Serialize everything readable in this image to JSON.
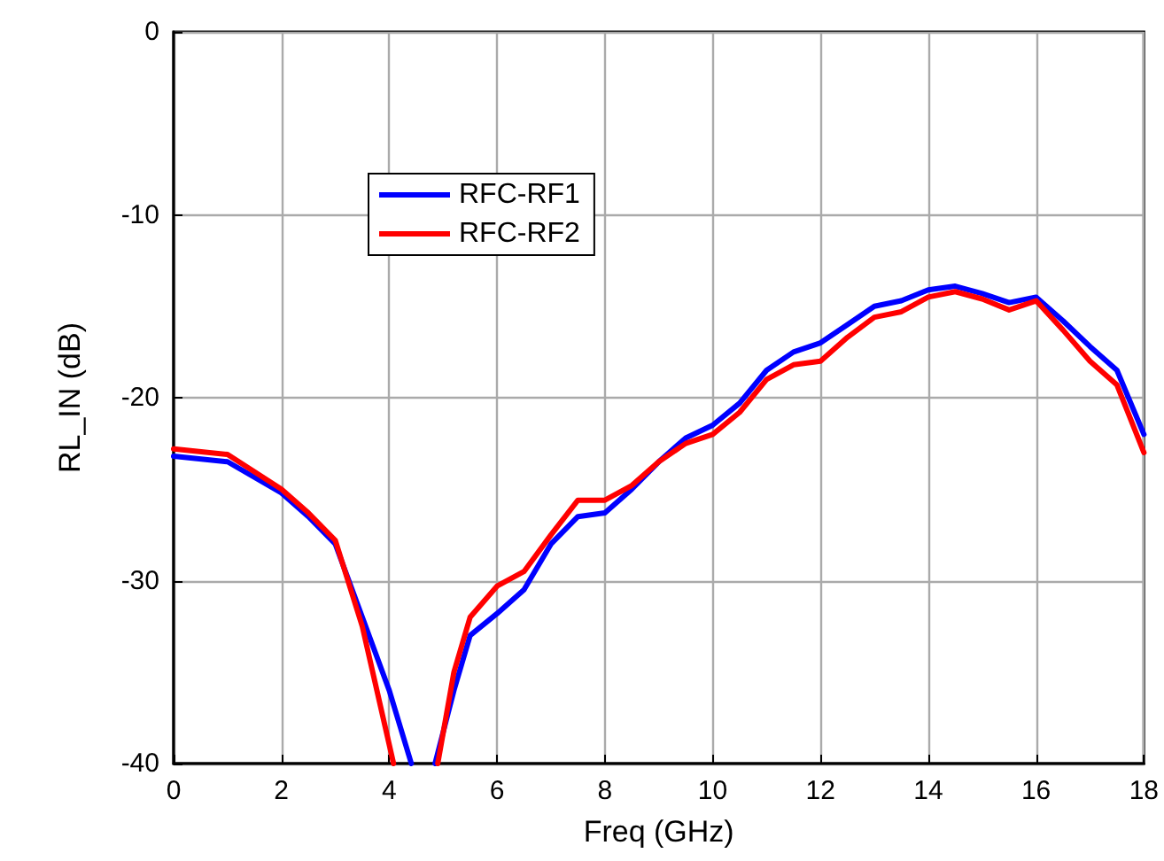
{
  "chart_data": {
    "type": "line",
    "xlabel": "Freq (GHz)",
    "ylabel": "RL_IN (dB)",
    "xlim": [
      0,
      18
    ],
    "xticks": [
      0,
      2,
      4,
      6,
      8,
      10,
      12,
      14,
      16,
      18
    ],
    "ylim": [
      -40,
      0
    ],
    "yticks": [
      -40,
      -30,
      -20,
      -10,
      0
    ],
    "grid": true,
    "legend": "top left",
    "marker": "none",
    "line_style": "solid",
    "series": [
      {
        "name": "RFC-RF1",
        "color": "#0000ff",
        "x": [
          0,
          1,
          2,
          2.5,
          3,
          3.5,
          4,
          4.41,
          4.6,
          4.85,
          5.2,
          5.5,
          6,
          6.5,
          7,
          7.5,
          8,
          8.5,
          9,
          9.5,
          10,
          10.5,
          11,
          11.5,
          12,
          12.5,
          13,
          13.5,
          14,
          14.5,
          15,
          15.5,
          16,
          16.5,
          17,
          17.5,
          18
        ],
        "values": [
          -23.2,
          -23.5,
          -25.2,
          -26.5,
          -28,
          -32,
          -36,
          -40,
          null,
          -40,
          -36,
          -33,
          -31.8,
          -30.5,
          -28,
          -26.5,
          -26.3,
          -25,
          -23.5,
          -22.2,
          -21.5,
          -20.3,
          -18.5,
          -17.5,
          -17,
          -16,
          -15,
          -14.7,
          -14.1,
          -13.9,
          -14.3,
          -14.8,
          -14.5,
          -15.8,
          -17.2,
          -18.5,
          -22
        ]
      },
      {
        "name": "RFC-RF2",
        "color": "#ff0000",
        "x": [
          0,
          1,
          2,
          2.5,
          3,
          3.5,
          4.08,
          4.5,
          4.9,
          5.2,
          5.5,
          6,
          6.5,
          7,
          7.5,
          8,
          8.5,
          9,
          9.5,
          10,
          10.5,
          11,
          11.5,
          12,
          12.5,
          13,
          13.5,
          14,
          14.5,
          15,
          15.5,
          16,
          16.5,
          17,
          17.5,
          18
        ],
        "values": [
          -22.8,
          -23.1,
          -25,
          -26.3,
          -27.8,
          -32.5,
          -40,
          null,
          -40,
          -35,
          -32,
          -30.3,
          -29.5,
          -27.5,
          -25.6,
          -25.6,
          -24.8,
          -23.5,
          -22.5,
          -22,
          -20.8,
          -19,
          -18.2,
          -18,
          -16.7,
          -15.6,
          -15.3,
          -14.5,
          -14.2,
          -14.6,
          -15.2,
          -14.7,
          -16.3,
          -18,
          -19.3,
          -23
        ]
      }
    ]
  }
}
